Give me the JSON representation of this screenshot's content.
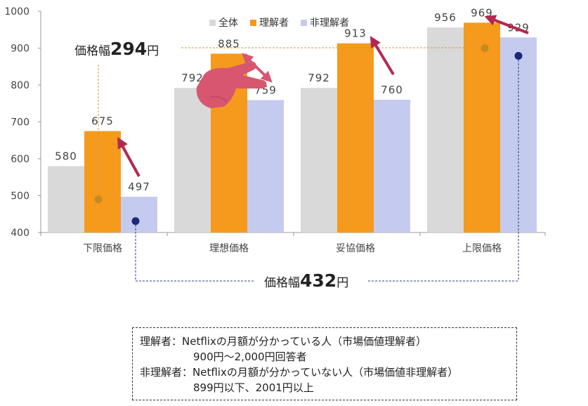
{
  "chart_data": {
    "type": "bar",
    "categories": [
      "下限価格",
      "理想価格",
      "妥協価格",
      "上限価格"
    ],
    "series": [
      {
        "name": "全体",
        "values": [
          580,
          792,
          792,
          956
        ],
        "labels": [
          "580",
          "792",
          "792",
          "956"
        ]
      },
      {
        "name": "理解者",
        "values": [
          675,
          885,
          913,
          969
        ],
        "labels": [
          "675",
          "885",
          "913",
          "969"
        ]
      },
      {
        "name": "非理解者",
        "values": [
          497,
          759,
          760,
          929
        ],
        "labels": [
          "497",
          "759",
          "760",
          "929"
        ]
      }
    ],
    "ylim": [
      400,
      1000
    ],
    "yticks": [
      400,
      500,
      600,
      700,
      800,
      900,
      1000
    ],
    "markers": {
      "understand_low": 490,
      "understand_high": 900,
      "nonunderstand_low": 431,
      "nonunderstand_high": 879
    },
    "legend_position": "top"
  },
  "annotations": {
    "range_understand": {
      "prefix": "価格幅",
      "value": "294",
      "suffix": "円"
    },
    "range_nonunderstand": {
      "prefix": "価格幅",
      "value": "432",
      "suffix": "円"
    }
  },
  "notes": {
    "line1": "理解者：Netflixの月額が分かっている人（市場価値理解者）",
    "line2": "900円～2,000円回答者",
    "line3": "非理解者：Netflixの月額が分かっていない人（市場価値非理解者）",
    "line4": "899円以下、2001円以上"
  },
  "colors": {
    "all": "#d9d9d9",
    "understand": "#f59a1d",
    "nonunderstand": "#c5cbee",
    "arrow": "#b4284f",
    "hand": "#d8566f",
    "marker_orange": "#c8891e",
    "marker_navy": "#1c2878",
    "dash_orange": "#d29a3a",
    "dash_navy": "#2a3c8a"
  }
}
